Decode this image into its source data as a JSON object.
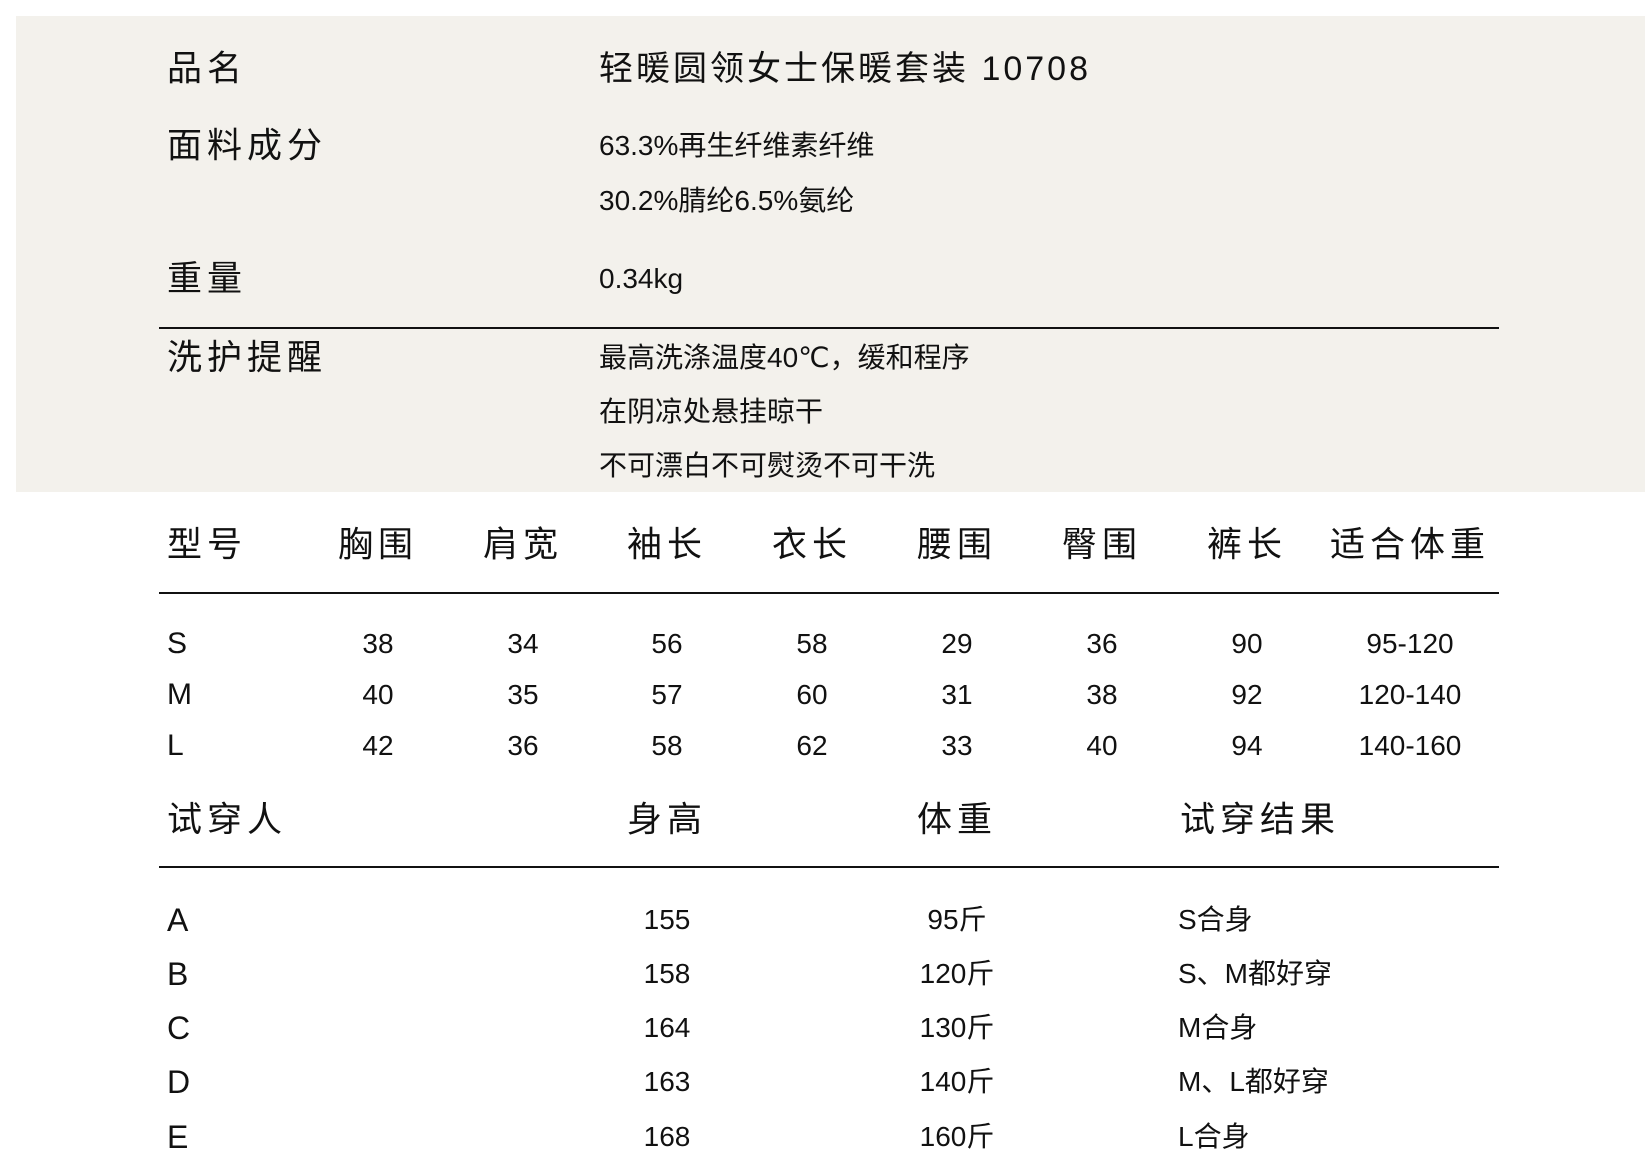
{
  "info": {
    "name_label": "品名",
    "name_value": "轻暖圆领女士保暖套装 10708",
    "fabric_label": "面料成分",
    "fabric_lines": [
      "63.3%再生纤维素纤维",
      "30.2%腈纶6.5%氨纶"
    ],
    "weight_label": "重量",
    "weight_value": "0.34kg",
    "care_label": "洗护提醒",
    "care_lines": [
      "最高洗涤温度40℃，缓和程序",
      "在阴凉处悬挂晾干",
      "不可漂白不可熨烫不可干洗"
    ]
  },
  "size_table": {
    "headers": [
      "型号",
      "胸围",
      "肩宽",
      "袖长",
      "衣长",
      "腰围",
      "臀围",
      "裤长",
      "适合体重"
    ],
    "rows": [
      [
        "S",
        "38",
        "34",
        "56",
        "58",
        "29",
        "36",
        "90",
        "95-120"
      ],
      [
        "M",
        "40",
        "35",
        "57",
        "60",
        "31",
        "38",
        "92",
        "120-140"
      ],
      [
        "L",
        "42",
        "36",
        "58",
        "62",
        "33",
        "40",
        "94",
        "140-160"
      ]
    ]
  },
  "trial_table": {
    "headers": [
      "试穿人",
      "身高",
      "体重",
      "试穿结果"
    ],
    "rows": [
      [
        "A",
        "155",
        "95斤",
        "S合身"
      ],
      [
        "B",
        "158",
        "120斤",
        "S、M都好穿"
      ],
      [
        "C",
        "164",
        "130斤",
        "M合身"
      ],
      [
        "D",
        "163",
        "140斤",
        "M、L都好穿"
      ],
      [
        "E",
        "168",
        "160斤",
        "L合身"
      ]
    ]
  },
  "colors": {
    "panel_bg": "#f3f1ec",
    "text": "#111111",
    "rule": "#111111"
  }
}
